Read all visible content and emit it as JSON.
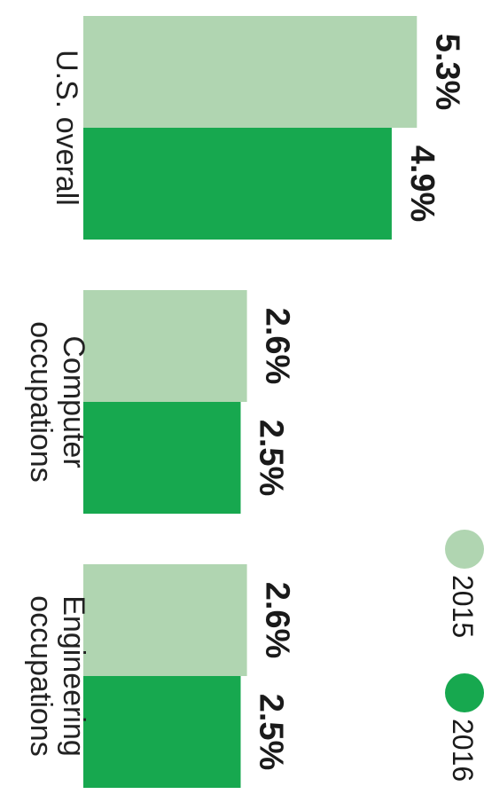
{
  "chart_data": {
    "type": "bar",
    "orientation": "horizontal, rotated 90 degrees clockwise",
    "categories": [
      "U.S. overall",
      "Computer occupations",
      "Engineering occupations"
    ],
    "category_lines": [
      [
        "U.S. overall"
      ],
      [
        "Computer",
        "occupations"
      ],
      [
        "Engineering",
        "occupations"
      ]
    ],
    "series": [
      {
        "name": "2015",
        "color": "#b0d5b1",
        "values": [
          5.3,
          2.6,
          2.6
        ],
        "labels": [
          "5.3%",
          "2.6%",
          "2.6%"
        ]
      },
      {
        "name": "2016",
        "color": "#17a84f",
        "values": [
          4.9,
          2.5,
          2.5
        ],
        "labels": [
          "4.9%",
          "2.5%",
          "2.5%"
        ]
      }
    ],
    "legend": {
      "placement": "right",
      "items": [
        {
          "label": "2015",
          "color": "#b0d5b1"
        },
        {
          "label": "2016",
          "color": "#17a84f"
        }
      ]
    },
    "grid": false
  }
}
